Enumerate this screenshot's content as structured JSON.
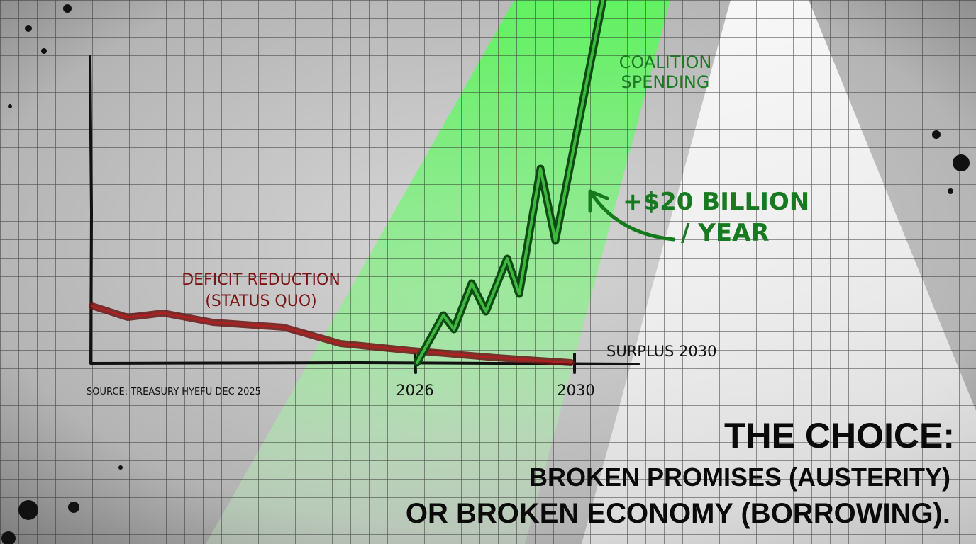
{
  "chart": {
    "coalition_label": [
      "COALITION",
      "SPENDING"
    ],
    "increase_label": [
      "+$20 BILLION",
      "/ YEAR"
    ],
    "deficit_label": [
      "DEFICIT REDUCTION",
      "(STATUS QUO)"
    ],
    "surplus_label": "SURPLUS 2030",
    "source": "SOURCE: TREASURY HYEFU DEC 2025",
    "x_labels": [
      "2026",
      "2030"
    ]
  },
  "headline": {
    "title": "THE CHOICE:",
    "lines": [
      "BROKEN PROMISES (AUSTERITY)",
      "OR BROKEN ECONOMY (BORROWING)."
    ]
  }
}
